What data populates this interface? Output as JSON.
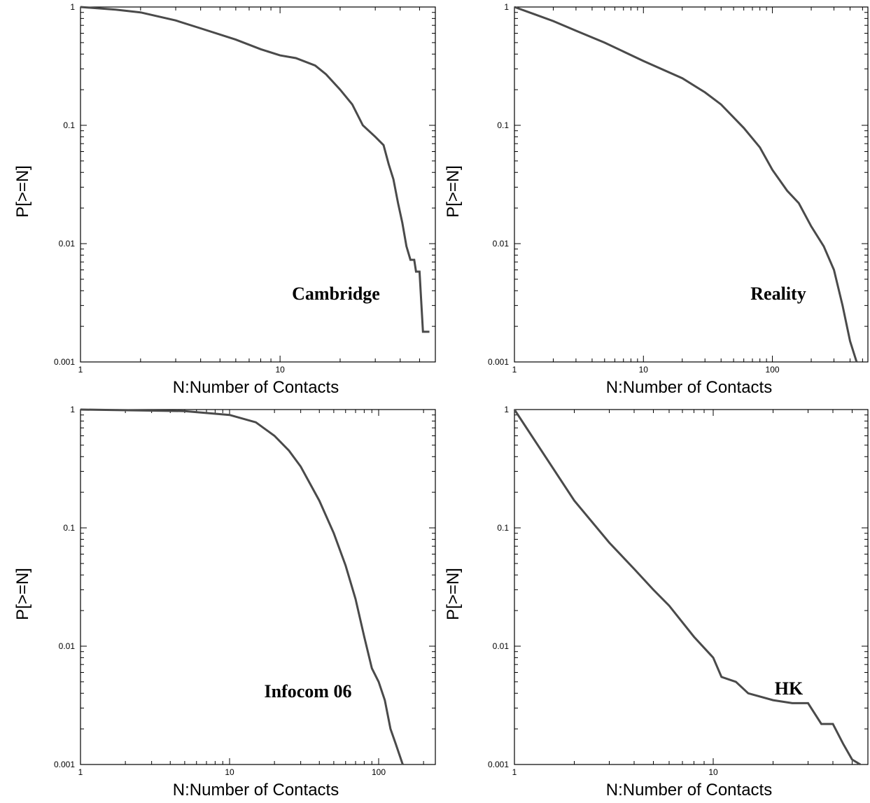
{
  "chart_data": [
    {
      "type": "line",
      "annotation": "Cambridge",
      "xlabel": "N:Number of Contacts",
      "ylabel": "P[>=N]",
      "x_scale": "log",
      "y_scale": "log",
      "xlim": [
        1,
        60
      ],
      "ylim": [
        0.001,
        1
      ],
      "xticks": [
        "1",
        "10"
      ],
      "yticks": [
        "1",
        "0.1",
        "0.01",
        "0.001"
      ],
      "grid": false,
      "series": [
        {
          "x": [
            1,
            1.5,
            2,
            3,
            4,
            6,
            8,
            10,
            12,
            15,
            17,
            20,
            23,
            26,
            30,
            33,
            35,
            37,
            39,
            41,
            43,
            45,
            47,
            48,
            50,
            52,
            53,
            54,
            56
          ],
          "y": [
            1,
            0.95,
            0.9,
            0.77,
            0.66,
            0.53,
            0.44,
            0.39,
            0.37,
            0.32,
            0.27,
            0.2,
            0.15,
            0.1,
            0.08,
            0.068,
            0.047,
            0.035,
            0.022,
            0.015,
            0.0095,
            0.0073,
            0.0073,
            0.0058,
            0.0058,
            0.0018,
            0.0018,
            0.0018,
            0.0018
          ]
        }
      ]
    },
    {
      "type": "line",
      "annotation": "Reality",
      "xlabel": "N:Number of Contacts",
      "ylabel": "P[>=N]",
      "x_scale": "log",
      "y_scale": "log",
      "xlim": [
        1,
        550
      ],
      "ylim": [
        0.001,
        1
      ],
      "xticks": [
        "1",
        "10",
        "100"
      ],
      "yticks": [
        "1",
        "0.1",
        "0.01",
        "0.001"
      ],
      "grid": false,
      "series": [
        {
          "x": [
            1,
            2,
            3,
            5,
            10,
            20,
            30,
            40,
            60,
            80,
            100,
            130,
            160,
            200,
            250,
            300,
            350,
            400,
            450
          ],
          "y": [
            1,
            0.76,
            0.63,
            0.5,
            0.35,
            0.25,
            0.19,
            0.15,
            0.095,
            0.065,
            0.042,
            0.028,
            0.022,
            0.014,
            0.0095,
            0.006,
            0.003,
            0.0015,
            0.001
          ]
        }
      ]
    },
    {
      "type": "line",
      "annotation": "Infocom 06",
      "xlabel": "N:Number of Contacts",
      "ylabel": "P[>=N]",
      "x_scale": "log",
      "y_scale": "log",
      "xlim": [
        1,
        240
      ],
      "ylim": [
        0.001,
        1
      ],
      "xticks": [
        "1",
        "10",
        "100"
      ],
      "yticks": [
        "1",
        "0.1",
        "0.01",
        "0.001"
      ],
      "grid": false,
      "series": [
        {
          "x": [
            1,
            5,
            10,
            15,
            20,
            25,
            30,
            40,
            50,
            60,
            70,
            80,
            90,
            100,
            110,
            120,
            130,
            145
          ],
          "y": [
            1,
            0.97,
            0.9,
            0.78,
            0.6,
            0.45,
            0.33,
            0.17,
            0.09,
            0.048,
            0.025,
            0.012,
            0.0065,
            0.005,
            0.0035,
            0.002,
            0.0015,
            0.001
          ]
        }
      ]
    },
    {
      "type": "line",
      "annotation": "HK",
      "xlabel": "N:Number of Contacts",
      "ylabel": "P[>=N]",
      "x_scale": "log",
      "y_scale": "log",
      "xlim": [
        1,
        60
      ],
      "ylim": [
        0.001,
        1
      ],
      "xticks": [
        "1",
        "10"
      ],
      "yticks": [
        "1",
        "0.1",
        "0.01",
        "0.001"
      ],
      "grid": false,
      "series": [
        {
          "x": [
            1,
            2,
            3,
            4,
            5,
            6,
            8,
            10,
            11,
            13,
            15,
            20,
            25,
            30,
            35,
            40,
            45,
            50,
            55
          ],
          "y": [
            1,
            0.17,
            0.075,
            0.045,
            0.03,
            0.022,
            0.012,
            0.008,
            0.0055,
            0.005,
            0.004,
            0.0035,
            0.0033,
            0.0033,
            0.0022,
            0.0022,
            0.0015,
            0.0011,
            0.001
          ]
        }
      ]
    }
  ]
}
